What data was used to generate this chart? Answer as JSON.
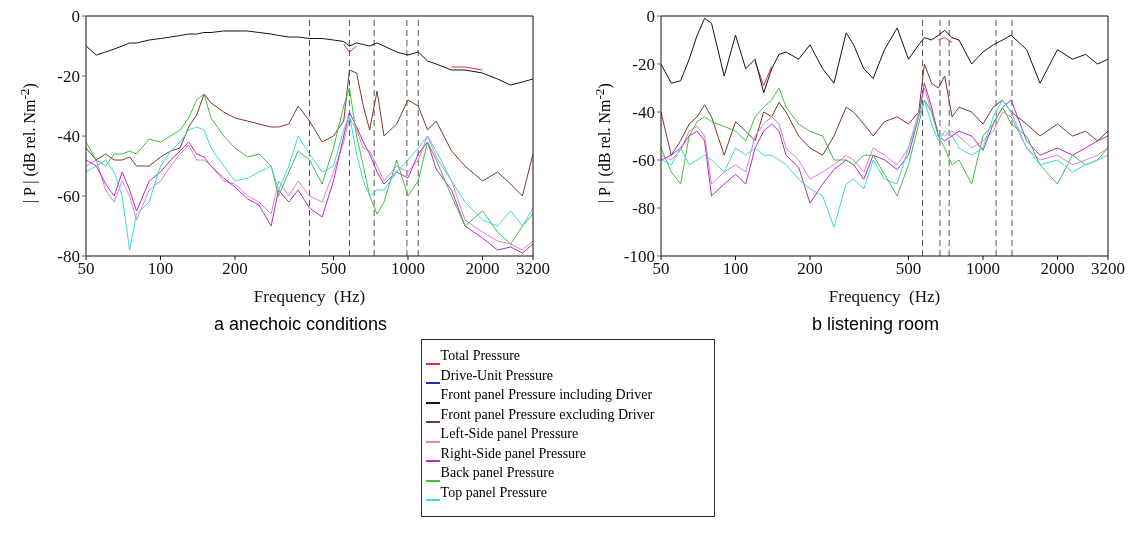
{
  "chart_data": [
    {
      "type": "line",
      "title": "a anechoic conditions",
      "xlabel": "Frequency  (Hz)",
      "ylabel": "| P | (dB rel. Nm$^{-2}$)",
      "log": "x",
      "legend": "bottom",
      "xlim": [
        50,
        3200
      ],
      "xticks": [
        50,
        100,
        200,
        500,
        1000,
        2000,
        3200
      ],
      "ylim": [
        -80,
        0
      ],
      "yticks": [
        -80,
        -60,
        -40,
        -20,
        0
      ],
      "x": [
        50,
        55,
        60,
        65,
        70,
        75,
        80,
        90,
        100,
        110,
        120,
        130,
        140,
        150,
        160,
        180,
        200,
        225,
        250,
        280,
        300,
        330,
        360,
        400,
        450,
        500,
        550,
        580,
        620,
        660,
        700,
        750,
        800,
        900,
        1000,
        1100,
        1200,
        1300,
        1500,
        1700,
        2000,
        2300,
        2600,
        2900,
        3200
      ],
      "ref_lines": [
        {
          "axis": "x",
          "value": 400,
          "color": "#555555",
          "line_style": "dashed"
        },
        {
          "axis": "x",
          "value": 580,
          "color": "#555555",
          "line_style": "dashed"
        },
        {
          "axis": "x",
          "value": 730,
          "color": "#555555",
          "line_style": "dashed"
        },
        {
          "axis": "x",
          "value": 990,
          "color": "#555555",
          "line_style": "dashed"
        },
        {
          "axis": "x",
          "value": 1100,
          "color": "#555555",
          "line_style": "dashed"
        }
      ],
      "series": [
        {
          "name": "Total Pressure",
          "color": "#e03030",
          "values": [
            null,
            null,
            null,
            null,
            null,
            null,
            null,
            null,
            null,
            null,
            null,
            null,
            null,
            null,
            null,
            null,
            null,
            null,
            null,
            null,
            null,
            null,
            null,
            null,
            null,
            null,
            -9.5,
            -12,
            -10,
            null,
            null,
            null,
            null,
            null,
            null,
            null,
            null,
            null,
            -17,
            -17,
            -18,
            null,
            null,
            null,
            null
          ]
        },
        {
          "name": "Drive-Unit Pressure",
          "color": "#2030c0",
          "values": [
            null,
            null,
            null,
            null,
            null,
            null,
            null,
            null,
            null,
            null,
            null,
            null,
            null,
            null,
            null,
            null,
            null,
            null,
            null,
            null,
            null,
            null,
            null,
            null,
            null,
            null,
            null,
            null,
            null,
            null,
            null,
            null,
            null,
            null,
            null,
            null,
            null,
            null,
            null,
            null,
            null,
            null,
            null,
            null,
            null
          ]
        },
        {
          "name": "Front panel Pressure including Driver",
          "color": "#1a1020",
          "values": [
            -10,
            -13,
            -12,
            -11,
            -10,
            -9,
            -9,
            -8,
            -7.5,
            -7,
            -6.5,
            -6,
            -6,
            -5.5,
            -5.5,
            -5,
            -5,
            -5,
            -5.5,
            -6,
            -6.5,
            -7,
            -7,
            -7.5,
            -7.5,
            -8,
            -8.5,
            -10,
            -9,
            -9.5,
            -10,
            -9,
            -10,
            -12,
            -13,
            -12,
            -15,
            -16,
            -18,
            -18,
            -19,
            -21,
            -23,
            -22,
            -21
          ]
        },
        {
          "name": "Front panel Pressure excluding Driver",
          "color": "#7a3a2a",
          "values": [
            -44,
            -48,
            -46,
            -48,
            -48,
            -47,
            -50,
            -50,
            -47,
            -45,
            -44,
            -37,
            -33,
            -26,
            -29,
            -32,
            -34,
            -35,
            -36,
            -37,
            -37,
            -36,
            -30,
            -35,
            -42,
            -40,
            -35,
            -18,
            -19,
            -30,
            -38,
            -25,
            -40,
            -36,
            -28,
            -30,
            -38,
            -35,
            -45,
            -50,
            -55,
            -52,
            -56,
            -60,
            -46
          ]
        },
        {
          "name": "Left-Side panel Pressure",
          "color": "#e080d0",
          "values": [
            -50,
            -48,
            -58,
            -62,
            -55,
            -60,
            -68,
            -58,
            -55,
            -50,
            -46,
            -43,
            -48,
            -48,
            -50,
            -55,
            -56,
            -60,
            -62,
            -66,
            -55,
            -60,
            -55,
            -60,
            -62,
            -52,
            -42,
            -34,
            -38,
            -44,
            -45,
            -50,
            -55,
            -50,
            -52,
            -48,
            -40,
            -47,
            -55,
            -68,
            -72,
            -75,
            -76,
            -78,
            -75
          ]
        },
        {
          "name": "Right-Side panel Pressure",
          "color": "#b030c0",
          "values": [
            -48,
            -50,
            -56,
            -60,
            -52,
            -58,
            -65,
            -55,
            -52,
            -48,
            -45,
            -42,
            -46,
            -47,
            -50,
            -54,
            -57,
            -61,
            -63,
            -70,
            -58,
            -62,
            -58,
            -64,
            -67,
            -55,
            -40,
            -32,
            -37,
            -42,
            -46,
            -52,
            -56,
            -52,
            -54,
            -46,
            -42,
            -51,
            -58,
            -70,
            -74,
            -78,
            -77,
            -79,
            -76
          ]
        },
        {
          "name": "Back panel Pressure",
          "color": "#40c040",
          "values": [
            -42,
            -48,
            -50,
            -46,
            -46,
            -45,
            -46,
            -41,
            -42,
            -40,
            -38,
            -34,
            -28,
            -26,
            -34,
            -40,
            -44,
            -47,
            -46,
            -50,
            -60,
            -52,
            -45,
            -48,
            -56,
            -44,
            -30,
            -24,
            -40,
            -50,
            -60,
            -66,
            -62,
            -48,
            -60,
            -55,
            -42,
            -48,
            -60,
            -70,
            -65,
            -72,
            -76,
            -70,
            -66
          ]
        },
        {
          "name": "Top panel Pressure",
          "color": "#40d8d8",
          "values": [
            -52,
            -50,
            -48,
            -52,
            -60,
            -78,
            -66,
            -62,
            -50,
            -45,
            -42,
            -38,
            -37,
            -38,
            -44,
            -50,
            -55,
            -54,
            -52,
            -50,
            -58,
            -50,
            -40,
            -46,
            -52,
            -50,
            -38,
            -33,
            -46,
            -55,
            -60,
            -58,
            -58,
            -52,
            -48,
            -44,
            -40,
            -45,
            -55,
            -62,
            -68,
            -70,
            -65,
            -70,
            -64
          ]
        }
      ]
    },
    {
      "type": "line",
      "title": "b listening room",
      "xlabel": "Frequency  (Hz)",
      "ylabel": "| P | (dB rel. Nm$^{-2}$)",
      "log": "x",
      "xlim": [
        50,
        3200
      ],
      "xticks": [
        50,
        100,
        200,
        500,
        1000,
        2000,
        3200
      ],
      "ylim": [
        -100,
        0
      ],
      "yticks": [
        -100,
        -80,
        -60,
        -40,
        -20,
        0
      ],
      "x": [
        50,
        55,
        60,
        65,
        70,
        75,
        80,
        90,
        100,
        110,
        120,
        130,
        140,
        150,
        160,
        180,
        200,
        225,
        250,
        280,
        300,
        330,
        360,
        400,
        450,
        500,
        550,
        580,
        620,
        660,
        700,
        750,
        800,
        900,
        1000,
        1100,
        1200,
        1300,
        1500,
        1700,
        2000,
        2300,
        2600,
        2900,
        3200
      ],
      "ref_lines": [
        {
          "axis": "x",
          "value": 570,
          "color": "#555555",
          "line_style": "dashed"
        },
        {
          "axis": "x",
          "value": 670,
          "color": "#555555",
          "line_style": "dashed"
        },
        {
          "axis": "x",
          "value": 730,
          "color": "#555555",
          "line_style": "dashed"
        },
        {
          "axis": "x",
          "value": 1130,
          "color": "#555555",
          "line_style": "dashed"
        },
        {
          "axis": "x",
          "value": 1310,
          "color": "#555555",
          "line_style": "dashed"
        }
      ],
      "series": [
        {
          "color": "#e03030",
          "values": [
            null,
            null,
            null,
            null,
            null,
            null,
            null,
            null,
            null,
            null,
            -19,
            -29,
            -21,
            null,
            null,
            null,
            null,
            null,
            null,
            null,
            null,
            null,
            null,
            null,
            null,
            null,
            null,
            null,
            null,
            -10,
            -9,
            -11,
            null,
            null,
            null,
            null,
            null,
            null,
            null,
            null,
            null,
            null,
            null,
            null,
            null
          ]
        },
        {
          "color": "#2030c0",
          "values": [
            null,
            null,
            null,
            null,
            null,
            null,
            null,
            null,
            null,
            null,
            null,
            null,
            null,
            null,
            null,
            null,
            null,
            null,
            null,
            null,
            null,
            null,
            null,
            null,
            null,
            null,
            null,
            null,
            null,
            null,
            null,
            null,
            null,
            null,
            null,
            null,
            null,
            null,
            null,
            null,
            null,
            null,
            null,
            null,
            null
          ]
        },
        {
          "color": "#1a1020",
          "values": [
            -20,
            -28,
            -27,
            -18,
            -8,
            -1,
            -3,
            -25,
            -8,
            -22,
            -18,
            -32,
            -22,
            -16,
            -15,
            -18,
            -12,
            -22,
            -28,
            -7,
            -12,
            -22,
            -26,
            -14,
            -5,
            -18,
            -12,
            -9,
            -10,
            -8,
            -6,
            -9,
            -10,
            -20,
            -15,
            -12,
            -10,
            -8,
            -14,
            -28,
            -14,
            -18,
            -16,
            -20,
            -18
          ]
        },
        {
          "color": "#7a3a2a",
          "values": [
            -40,
            -58,
            -52,
            -45,
            -42,
            -37,
            -42,
            -58,
            -44,
            -48,
            -52,
            -40,
            -42,
            -36,
            -40,
            -50,
            -55,
            -58,
            -50,
            -38,
            -40,
            -45,
            -50,
            -44,
            -42,
            -45,
            -40,
            -20,
            -28,
            -30,
            -25,
            -42,
            -38,
            -40,
            -45,
            -38,
            -35,
            -40,
            -45,
            -50,
            -45,
            -50,
            -48,
            -52,
            -48
          ]
        },
        {
          "color": "#e080d0",
          "values": [
            -58,
            -60,
            -56,
            -48,
            -46,
            -50,
            -70,
            -65,
            -62,
            -65,
            -50,
            -45,
            -42,
            -45,
            -55,
            -60,
            -68,
            -65,
            -62,
            -58,
            -60,
            -65,
            -55,
            -58,
            -62,
            -55,
            -40,
            -30,
            -40,
            -48,
            -50,
            -48,
            -50,
            -55,
            -52,
            -48,
            -40,
            -42,
            -55,
            -60,
            -58,
            -62,
            -60,
            -58,
            -55
          ]
        },
        {
          "color": "#b030c0",
          "values": [
            -60,
            -58,
            -55,
            -50,
            -48,
            -52,
            -75,
            -70,
            -66,
            -70,
            -55,
            -48,
            -45,
            -48,
            -58,
            -63,
            -78,
            -70,
            -64,
            -60,
            -62,
            -68,
            -58,
            -60,
            -64,
            -58,
            -42,
            -28,
            -38,
            -50,
            -52,
            -50,
            -48,
            -50,
            -56,
            -45,
            -38,
            -35,
            -52,
            -58,
            -55,
            -58,
            -55,
            -52,
            -50
          ]
        },
        {
          "color": "#40c040",
          "values": [
            -55,
            -65,
            -70,
            -50,
            -44,
            -42,
            -44,
            -46,
            -48,
            -52,
            -42,
            -38,
            -35,
            -30,
            -38,
            -45,
            -48,
            -50,
            -60,
            -60,
            -62,
            -58,
            -58,
            -66,
            -75,
            -62,
            -45,
            -35,
            -40,
            -50,
            -55,
            -62,
            -60,
            -70,
            -50,
            -45,
            -38,
            -45,
            -50,
            -62,
            -70,
            -58,
            -62,
            -60,
            -55
          ]
        },
        {
          "color": "#40d8d8",
          "values": [
            -60,
            -62,
            -55,
            -62,
            -60,
            -58,
            -60,
            -65,
            -55,
            -58,
            -55,
            -58,
            -58,
            -60,
            -62,
            -68,
            -72,
            -75,
            -88,
            -70,
            -68,
            -72,
            -60,
            -68,
            -70,
            -55,
            -42,
            -35,
            -45,
            -52,
            -48,
            -50,
            -55,
            -58,
            -55,
            -42,
            -35,
            -40,
            -55,
            -62,
            -60,
            -65,
            -62,
            -60,
            -58
          ]
        }
      ]
    }
  ]
}
